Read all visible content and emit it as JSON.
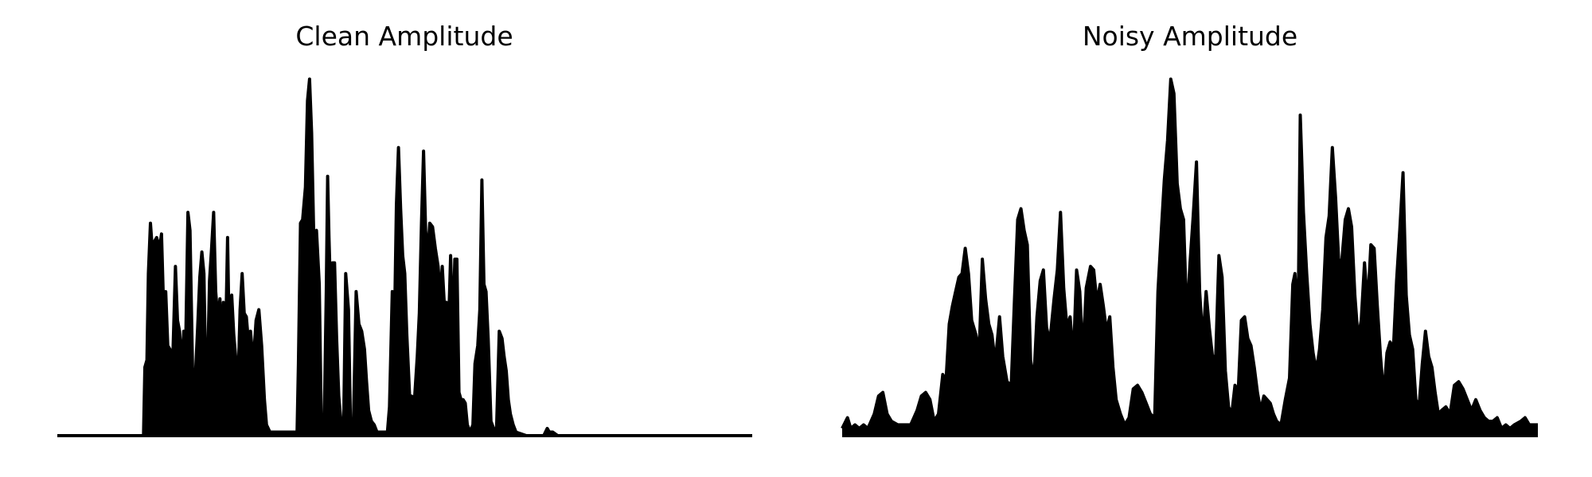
{
  "colors": {
    "background": "#ffffff",
    "signal": "#000000"
  },
  "chart_data": [
    {
      "type": "area",
      "title": "Clean Amplitude",
      "axes_visible": false,
      "grid": false,
      "xlim": [
        0,
        1
      ],
      "ylim": [
        0,
        1
      ],
      "envelope": [
        [
          0.0,
          0.0
        ],
        [
          0.124,
          0.0
        ],
        [
          0.126,
          0.19
        ],
        [
          0.129,
          0.21
        ],
        [
          0.131,
          0.45
        ],
        [
          0.134,
          0.59
        ],
        [
          0.137,
          0.51
        ],
        [
          0.14,
          0.54
        ],
        [
          0.143,
          0.55
        ],
        [
          0.147,
          0.52
        ],
        [
          0.15,
          0.56
        ],
        [
          0.153,
          0.35
        ],
        [
          0.156,
          0.4
        ],
        [
          0.159,
          0.25
        ],
        [
          0.162,
          0.24
        ],
        [
          0.166,
          0.2
        ],
        [
          0.17,
          0.47
        ],
        [
          0.173,
          0.32
        ],
        [
          0.176,
          0.29
        ],
        [
          0.179,
          0.19
        ],
        [
          0.182,
          0.29
        ],
        [
          0.185,
          0.28
        ],
        [
          0.188,
          0.62
        ],
        [
          0.191,
          0.57
        ],
        [
          0.195,
          0.15
        ],
        [
          0.198,
          0.14
        ],
        [
          0.202,
          0.3
        ],
        [
          0.205,
          0.44
        ],
        [
          0.208,
          0.51
        ],
        [
          0.211,
          0.45
        ],
        [
          0.214,
          0.12
        ],
        [
          0.216,
          0.17
        ],
        [
          0.219,
          0.43
        ],
        [
          0.222,
          0.52
        ],
        [
          0.225,
          0.62
        ],
        [
          0.228,
          0.4
        ],
        [
          0.231,
          0.32
        ],
        [
          0.234,
          0.38
        ],
        [
          0.237,
          0.19
        ],
        [
          0.239,
          0.37
        ],
        [
          0.242,
          0.25
        ],
        [
          0.245,
          0.55
        ],
        [
          0.248,
          0.2
        ],
        [
          0.251,
          0.39
        ],
        [
          0.254,
          0.28
        ],
        [
          0.257,
          0.21
        ],
        [
          0.26,
          0.14
        ],
        [
          0.263,
          0.35
        ],
        [
          0.266,
          0.45
        ],
        [
          0.269,
          0.34
        ],
        [
          0.272,
          0.33
        ],
        [
          0.275,
          0.26
        ],
        [
          0.278,
          0.29
        ],
        [
          0.282,
          0.2
        ],
        [
          0.286,
          0.32
        ],
        [
          0.29,
          0.35
        ],
        [
          0.294,
          0.25
        ],
        [
          0.298,
          0.1
        ],
        [
          0.301,
          0.03
        ],
        [
          0.306,
          0.01
        ],
        [
          0.32,
          0.01
        ],
        [
          0.345,
          0.01
        ],
        [
          0.347,
          0.2
        ],
        [
          0.35,
          0.59
        ],
        [
          0.353,
          0.6
        ],
        [
          0.357,
          0.69
        ],
        [
          0.36,
          0.93
        ],
        [
          0.363,
          0.99
        ],
        [
          0.366,
          0.84
        ],
        [
          0.369,
          0.56
        ],
        [
          0.373,
          0.57
        ],
        [
          0.377,
          0.42
        ],
        [
          0.38,
          0.03
        ],
        [
          0.384,
          0.02
        ],
        [
          0.387,
          0.4
        ],
        [
          0.389,
          0.72
        ],
        [
          0.391,
          0.55
        ],
        [
          0.393,
          0.41
        ],
        [
          0.396,
          0.48
        ],
        [
          0.399,
          0.48
        ],
        [
          0.402,
          0.27
        ],
        [
          0.405,
          0.11
        ],
        [
          0.409,
          0.02
        ],
        [
          0.412,
          0.02
        ],
        [
          0.415,
          0.45
        ],
        [
          0.419,
          0.35
        ],
        [
          0.422,
          0.02
        ],
        [
          0.426,
          0.02
        ],
        [
          0.43,
          0.4
        ],
        [
          0.434,
          0.31
        ],
        [
          0.438,
          0.29
        ],
        [
          0.442,
          0.24
        ],
        [
          0.445,
          0.15
        ],
        [
          0.448,
          0.07
        ],
        [
          0.452,
          0.04
        ],
        [
          0.456,
          0.03
        ],
        [
          0.46,
          0.01
        ],
        [
          0.468,
          0.01
        ],
        [
          0.475,
          0.01
        ],
        [
          0.478,
          0.08
        ],
        [
          0.482,
          0.4
        ],
        [
          0.485,
          0.28
        ],
        [
          0.488,
          0.64
        ],
        [
          0.491,
          0.8
        ],
        [
          0.494,
          0.63
        ],
        [
          0.497,
          0.5
        ],
        [
          0.5,
          0.45
        ],
        [
          0.503,
          0.28
        ],
        [
          0.507,
          0.11
        ],
        [
          0.51,
          0.11
        ],
        [
          0.514,
          0.1
        ],
        [
          0.518,
          0.22
        ],
        [
          0.521,
          0.34
        ],
        [
          0.524,
          0.59
        ],
        [
          0.527,
          0.79
        ],
        [
          0.53,
          0.57
        ],
        [
          0.533,
          0.5
        ],
        [
          0.536,
          0.59
        ],
        [
          0.54,
          0.58
        ],
        [
          0.544,
          0.52
        ],
        [
          0.548,
          0.47
        ],
        [
          0.551,
          0.39
        ],
        [
          0.554,
          0.47
        ],
        [
          0.557,
          0.36
        ],
        [
          0.56,
          0.37
        ],
        [
          0.563,
          0.3
        ],
        [
          0.566,
          0.5
        ],
        [
          0.569,
          0.28
        ],
        [
          0.572,
          0.49
        ],
        [
          0.575,
          0.49
        ],
        [
          0.578,
          0.12
        ],
        [
          0.581,
          0.1
        ],
        [
          0.584,
          0.1
        ],
        [
          0.587,
          0.09
        ],
        [
          0.59,
          0.03
        ],
        [
          0.594,
          0.01
        ],
        [
          0.598,
          0.03
        ],
        [
          0.601,
          0.2
        ],
        [
          0.605,
          0.25
        ],
        [
          0.608,
          0.35
        ],
        [
          0.611,
          0.71
        ],
        [
          0.614,
          0.42
        ],
        [
          0.617,
          0.4
        ],
        [
          0.62,
          0.27
        ],
        [
          0.624,
          0.04
        ],
        [
          0.628,
          0.02
        ],
        [
          0.632,
          0.01
        ],
        [
          0.636,
          0.29
        ],
        [
          0.64,
          0.27
        ],
        [
          0.643,
          0.22
        ],
        [
          0.646,
          0.18
        ],
        [
          0.649,
          0.1
        ],
        [
          0.652,
          0.06
        ],
        [
          0.656,
          0.03
        ],
        [
          0.66,
          0.01
        ],
        [
          0.675,
          0.0
        ],
        [
          0.7,
          0.0
        ],
        [
          0.705,
          0.02
        ],
        [
          0.708,
          0.01
        ],
        [
          0.713,
          0.01
        ],
        [
          0.72,
          0.0
        ],
        [
          1.0,
          0.0
        ]
      ]
    },
    {
      "type": "area",
      "title": "Noisy Amplitude",
      "axes_visible": false,
      "grid": false,
      "xlim": [
        0,
        1
      ],
      "ylim": [
        0,
        1
      ],
      "envelope": [
        [
          0.0,
          0.02
        ],
        [
          0.005,
          0.05
        ],
        [
          0.008,
          0.02
        ],
        [
          0.012,
          0.03
        ],
        [
          0.016,
          0.02
        ],
        [
          0.02,
          0.03
        ],
        [
          0.024,
          0.02
        ],
        [
          0.03,
          0.06
        ],
        [
          0.034,
          0.11
        ],
        [
          0.038,
          0.12
        ],
        [
          0.042,
          0.06
        ],
        [
          0.046,
          0.04
        ],
        [
          0.052,
          0.03
        ],
        [
          0.058,
          0.03
        ],
        [
          0.064,
          0.03
        ],
        [
          0.07,
          0.07
        ],
        [
          0.074,
          0.11
        ],
        [
          0.078,
          0.12
        ],
        [
          0.082,
          0.1
        ],
        [
          0.086,
          0.04
        ],
        [
          0.09,
          0.06
        ],
        [
          0.094,
          0.17
        ],
        [
          0.097,
          0.15
        ],
        [
          0.1,
          0.31
        ],
        [
          0.103,
          0.36
        ],
        [
          0.106,
          0.4
        ],
        [
          0.109,
          0.44
        ],
        [
          0.112,
          0.45
        ],
        [
          0.115,
          0.52
        ],
        [
          0.118,
          0.45
        ],
        [
          0.121,
          0.32
        ],
        [
          0.125,
          0.28
        ],
        [
          0.128,
          0.23
        ],
        [
          0.131,
          0.49
        ],
        [
          0.134,
          0.38
        ],
        [
          0.137,
          0.31
        ],
        [
          0.14,
          0.28
        ],
        [
          0.143,
          0.2
        ],
        [
          0.147,
          0.33
        ],
        [
          0.15,
          0.22
        ],
        [
          0.154,
          0.15
        ],
        [
          0.158,
          0.14
        ],
        [
          0.161,
          0.38
        ],
        [
          0.164,
          0.6
        ],
        [
          0.167,
          0.63
        ],
        [
          0.17,
          0.57
        ],
        [
          0.173,
          0.53
        ],
        [
          0.176,
          0.21
        ],
        [
          0.179,
          0.15
        ],
        [
          0.182,
          0.33
        ],
        [
          0.185,
          0.43
        ],
        [
          0.188,
          0.46
        ],
        [
          0.191,
          0.3
        ],
        [
          0.194,
          0.26
        ],
        [
          0.198,
          0.38
        ],
        [
          0.201,
          0.46
        ],
        [
          0.204,
          0.62
        ],
        [
          0.207,
          0.41
        ],
        [
          0.21,
          0.3
        ],
        [
          0.213,
          0.33
        ],
        [
          0.216,
          0.21
        ],
        [
          0.219,
          0.46
        ],
        [
          0.222,
          0.4
        ],
        [
          0.225,
          0.22
        ],
        [
          0.228,
          0.41
        ],
        [
          0.232,
          0.47
        ],
        [
          0.235,
          0.46
        ],
        [
          0.238,
          0.37
        ],
        [
          0.241,
          0.42
        ],
        [
          0.244,
          0.36
        ],
        [
          0.247,
          0.29
        ],
        [
          0.25,
          0.33
        ],
        [
          0.253,
          0.19
        ],
        [
          0.256,
          0.1
        ],
        [
          0.26,
          0.06
        ],
        [
          0.264,
          0.03
        ],
        [
          0.268,
          0.05
        ],
        [
          0.272,
          0.13
        ],
        [
          0.276,
          0.14
        ],
        [
          0.28,
          0.12
        ],
        [
          0.284,
          0.09
        ],
        [
          0.288,
          0.06
        ],
        [
          0.292,
          0.05
        ],
        [
          0.295,
          0.4
        ],
        [
          0.298,
          0.56
        ],
        [
          0.301,
          0.71
        ],
        [
          0.304,
          0.82
        ],
        [
          0.307,
          0.99
        ],
        [
          0.31,
          0.95
        ],
        [
          0.313,
          0.7
        ],
        [
          0.316,
          0.63
        ],
        [
          0.319,
          0.6
        ],
        [
          0.322,
          0.32
        ],
        [
          0.325,
          0.48
        ],
        [
          0.328,
          0.61
        ],
        [
          0.331,
          0.76
        ],
        [
          0.334,
          0.4
        ],
        [
          0.337,
          0.26
        ],
        [
          0.34,
          0.4
        ],
        [
          0.343,
          0.3
        ],
        [
          0.346,
          0.22
        ],
        [
          0.349,
          0.22
        ],
        [
          0.352,
          0.5
        ],
        [
          0.355,
          0.44
        ],
        [
          0.358,
          0.18
        ],
        [
          0.361,
          0.08
        ],
        [
          0.364,
          0.06
        ],
        [
          0.367,
          0.14
        ],
        [
          0.37,
          0.12
        ],
        [
          0.373,
          0.32
        ],
        [
          0.376,
          0.33
        ],
        [
          0.379,
          0.27
        ],
        [
          0.382,
          0.25
        ],
        [
          0.385,
          0.19
        ],
        [
          0.388,
          0.12
        ],
        [
          0.391,
          0.07
        ],
        [
          0.394,
          0.11
        ],
        [
          0.397,
          0.1
        ],
        [
          0.4,
          0.09
        ],
        [
          0.403,
          0.06
        ],
        [
          0.406,
          0.04
        ],
        [
          0.41,
          0.03
        ],
        [
          0.414,
          0.1
        ],
        [
          0.418,
          0.16
        ],
        [
          0.421,
          0.42
        ],
        [
          0.423,
          0.45
        ],
        [
          0.426,
          0.32
        ],
        [
          0.428,
          0.89
        ],
        [
          0.431,
          0.62
        ],
        [
          0.434,
          0.45
        ],
        [
          0.437,
          0.31
        ],
        [
          0.44,
          0.23
        ],
        [
          0.443,
          0.18
        ],
        [
          0.446,
          0.24
        ],
        [
          0.449,
          0.35
        ],
        [
          0.452,
          0.55
        ],
        [
          0.455,
          0.61
        ],
        [
          0.458,
          0.8
        ],
        [
          0.461,
          0.66
        ],
        [
          0.464,
          0.48
        ],
        [
          0.467,
          0.49
        ],
        [
          0.47,
          0.6
        ],
        [
          0.473,
          0.63
        ],
        [
          0.476,
          0.58
        ],
        [
          0.479,
          0.39
        ],
        [
          0.482,
          0.27
        ],
        [
          0.485,
          0.32
        ],
        [
          0.488,
          0.48
        ],
        [
          0.491,
          0.36
        ],
        [
          0.494,
          0.53
        ],
        [
          0.497,
          0.52
        ],
        [
          0.5,
          0.36
        ],
        [
          0.503,
          0.22
        ],
        [
          0.506,
          0.11
        ],
        [
          0.509,
          0.23
        ],
        [
          0.512,
          0.26
        ],
        [
          0.515,
          0.24
        ],
        [
          0.518,
          0.43
        ],
        [
          0.521,
          0.57
        ],
        [
          0.524,
          0.73
        ],
        [
          0.527,
          0.39
        ],
        [
          0.53,
          0.28
        ],
        [
          0.533,
          0.24
        ],
        [
          0.536,
          0.1
        ],
        [
          0.539,
          0.08
        ],
        [
          0.542,
          0.2
        ],
        [
          0.545,
          0.29
        ],
        [
          0.548,
          0.22
        ],
        [
          0.551,
          0.19
        ],
        [
          0.554,
          0.12
        ],
        [
          0.557,
          0.06
        ],
        [
          0.56,
          0.07
        ],
        [
          0.564,
          0.08
        ],
        [
          0.568,
          0.06
        ],
        [
          0.572,
          0.14
        ],
        [
          0.576,
          0.15
        ],
        [
          0.58,
          0.13
        ],
        [
          0.584,
          0.1
        ],
        [
          0.588,
          0.07
        ],
        [
          0.592,
          0.1
        ],
        [
          0.596,
          0.07
        ],
        [
          0.6,
          0.05
        ],
        [
          0.604,
          0.04
        ],
        [
          0.608,
          0.04
        ],
        [
          0.612,
          0.05
        ],
        [
          0.616,
          0.02
        ],
        [
          0.62,
          0.03
        ],
        [
          0.624,
          0.02
        ],
        [
          0.628,
          0.03
        ],
        [
          0.634,
          0.04
        ],
        [
          0.638,
          0.05
        ],
        [
          0.642,
          0.03
        ],
        [
          0.646,
          0.03
        ],
        [
          0.65,
          0.03
        ]
      ]
    }
  ]
}
